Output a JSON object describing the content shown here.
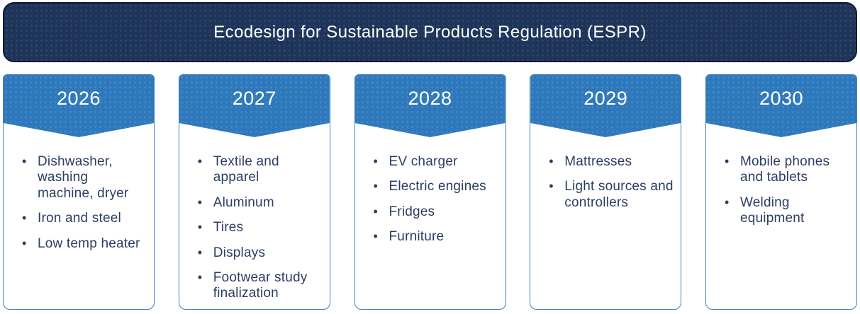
{
  "title": "Ecodesign for Sustainable Products Regulation (ESPR)",
  "colors": {
    "banner_background": "#1E3458",
    "header_background": "#2E79BC",
    "card_border": "#3E80BF",
    "item_text": "#2A3E62",
    "title_text": "#FFFFFF"
  },
  "columns": [
    {
      "year": "2026",
      "items": [
        "Dishwasher, washing machine, dryer",
        "Iron and steel",
        "Low temp heater"
      ]
    },
    {
      "year": "2027",
      "items": [
        "Textile and apparel",
        "Aluminum",
        "Tires",
        "Displays",
        "Footwear study finalization"
      ]
    },
    {
      "year": "2028",
      "items": [
        "EV charger",
        "Electric engines",
        "Fridges",
        "Furniture"
      ]
    },
    {
      "year": "2029",
      "items": [
        "Mattresses",
        "Light sources and controllers"
      ]
    },
    {
      "year": "2030",
      "items": [
        "Mobile phones and tablets",
        "Welding equipment"
      ]
    }
  ]
}
